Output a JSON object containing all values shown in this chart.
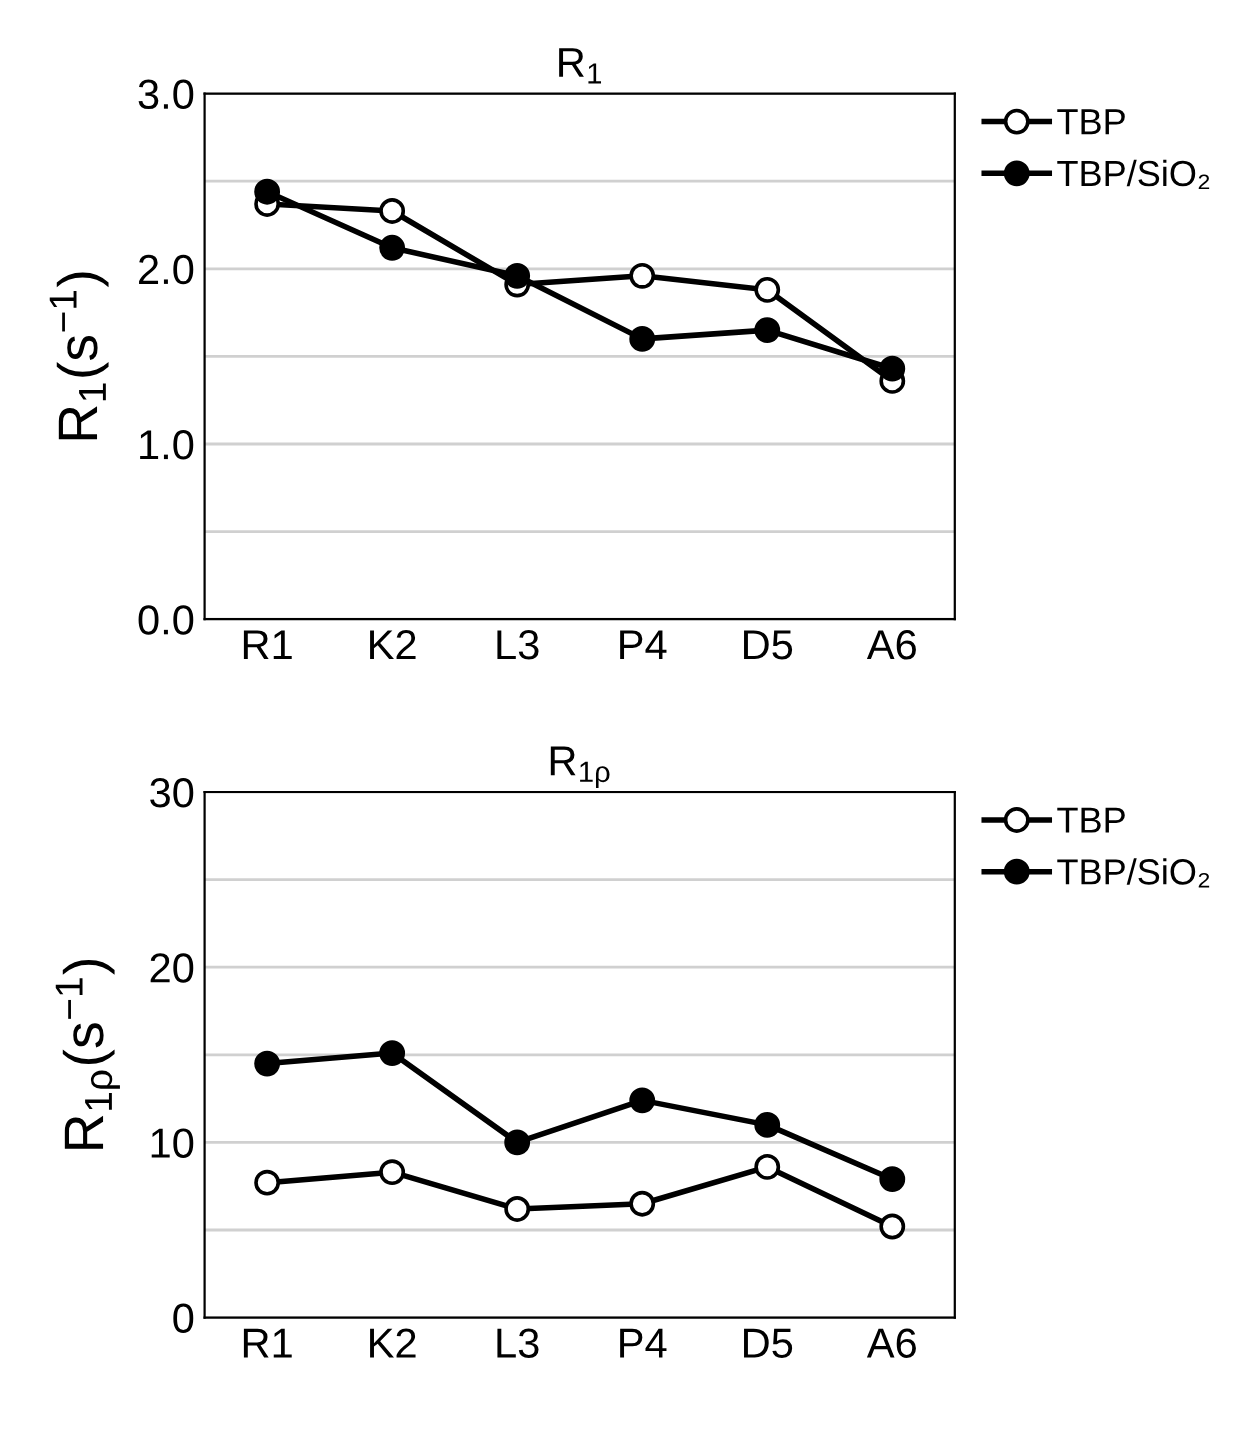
{
  "chart_data": [
    {
      "type": "line",
      "title": "R$_{1}$",
      "ylabel": "R$_{1}$(s$^{−1}$)",
      "categories": [
        "R1",
        "K2",
        "L3",
        "P4",
        "D5",
        "A6"
      ],
      "series": [
        {
          "name": "TBP",
          "color": "#000000",
          "values": [
            2.37,
            2.33,
            1.91,
            1.96,
            1.88,
            1.36
          ]
        },
        {
          "name": "TBP/SiO₂",
          "color": "#000000",
          "values": [
            2.44,
            2.12,
            1.96,
            1.6,
            1.65,
            1.43
          ]
        }
      ],
      "ylim": [
        0,
        3
      ],
      "yticks": [
        {
          "value": 0,
          "label": "0.0"
        },
        {
          "value": 0.5,
          "label": null
        },
        {
          "value": 1,
          "label": "1.0"
        },
        {
          "value": 1.5,
          "label": null
        },
        {
          "value": 2,
          "label": "2.0"
        },
        {
          "value": 2.5,
          "label": null
        },
        {
          "value": 3,
          "label": "3.0"
        }
      ],
      "grid": "y",
      "legend": "top right",
      "marker": "circle",
      "line_style": "solid"
    },
    {
      "type": "line",
      "title": "R$_{1ρ}$",
      "ylabel": "R$_{1ρ}$(s$^{−1}$)",
      "categories": [
        "R1",
        "K2",
        "L3",
        "P4",
        "D5",
        "A6"
      ],
      "series": [
        {
          "name": "TBP",
          "color": "#000000",
          "values": [
            7.7,
            8.3,
            6.2,
            6.5,
            8.6,
            5.2
          ]
        },
        {
          "name": "TBP/SiO₂",
          "color": "#000000",
          "values": [
            14.5,
            15.1,
            10.0,
            12.4,
            11.0,
            7.9
          ]
        }
      ],
      "ylim": [
        0,
        30
      ],
      "yticks": [
        0,
        {
          "value": 5,
          "label": null
        },
        10,
        {
          "value": 15,
          "label": null
        },
        20,
        {
          "value": 25,
          "label": null
        },
        30
      ],
      "grid": "y",
      "legend": "top right",
      "marker": "circle",
      "line_style": "solid"
    }
  ]
}
